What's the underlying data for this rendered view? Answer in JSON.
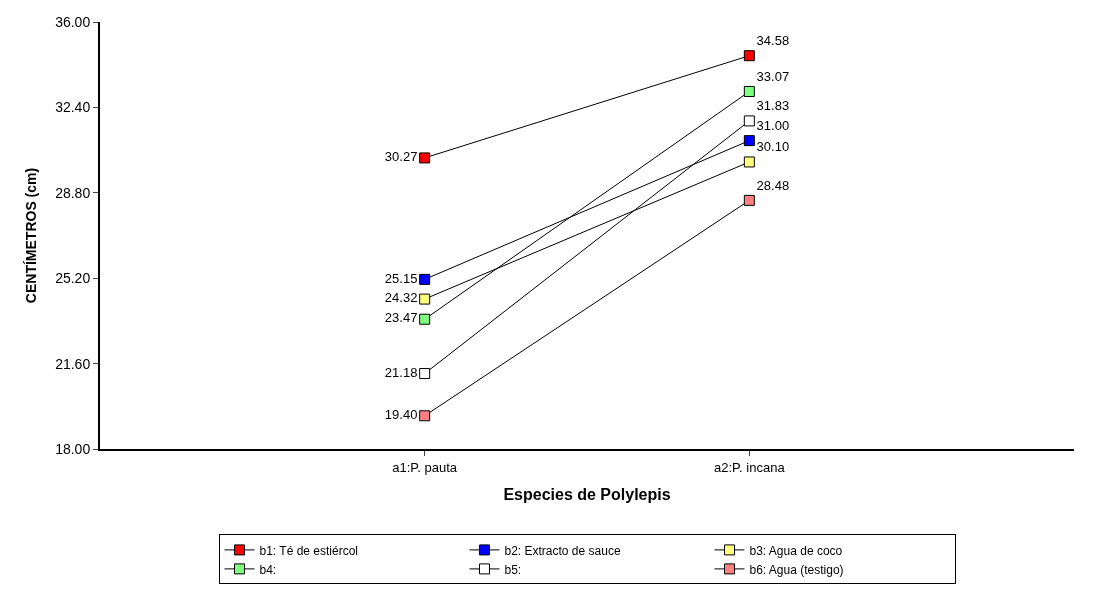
{
  "chart_data": {
    "type": "line",
    "xlabel": "Especies de Polylepis",
    "ylabel": "CENTÍMETROS (cm)",
    "categories": [
      "a1:P. pauta",
      "a2:P. incana"
    ],
    "series": [
      {
        "name": "b1: Té de estiércol",
        "color": "#ff0000",
        "values": [
          30.27,
          34.58
        ],
        "value_labels": [
          "30.27",
          "34.58"
        ]
      },
      {
        "name": "b2: Extracto de sauce",
        "color": "#0000ff",
        "values": [
          25.15,
          31.0
        ],
        "value_labels": [
          "25.15",
          "31.00"
        ]
      },
      {
        "name": "b3: Agua de coco",
        "color": "#ffff80",
        "values": [
          24.32,
          30.1
        ],
        "value_labels": [
          "24.32",
          "30.10"
        ]
      },
      {
        "name": "b4:",
        "color": "#80ff80",
        "values": [
          23.47,
          33.07
        ],
        "value_labels": [
          "23.47",
          "33.07"
        ]
      },
      {
        "name": "b5:",
        "color": "#ffffff",
        "values": [
          21.18,
          31.83
        ],
        "value_labels": [
          "21.18",
          "31.83"
        ]
      },
      {
        "name": "b6: Agua (testigo)",
        "color": "#ff8080",
        "values": [
          19.4,
          28.48
        ],
        "value_labels": [
          "19.40",
          "28.48"
        ]
      }
    ],
    "ylim": [
      18,
      36
    ],
    "yticks": [
      {
        "value": 18,
        "label": "18.00"
      },
      {
        "value": 21.6,
        "label": "21.60"
      },
      {
        "value": 25.2,
        "label": "25.20"
      },
      {
        "value": 28.8,
        "label": "28.80"
      },
      {
        "value": 32.4,
        "label": "32.40"
      },
      {
        "value": 36,
        "label": "36.00"
      }
    ],
    "legend": "bottom",
    "marker": "square",
    "line_style": "solid"
  }
}
